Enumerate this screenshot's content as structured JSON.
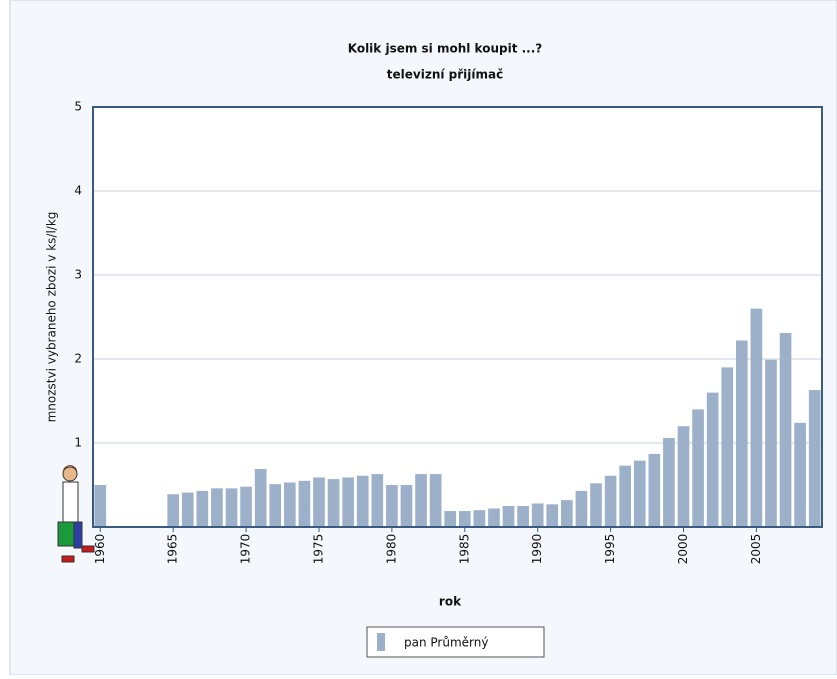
{
  "chart_data": {
    "type": "bar",
    "title": "Kolik jsem si  mohl koupit ...?",
    "subtitle": "televizní přijímač",
    "x_label": "rok",
    "y_label": "mnozstvi vybraneho zbozi v ks/l/kg",
    "categories": [
      "1960",
      null,
      null,
      null,
      null,
      "1965",
      null,
      null,
      null,
      null,
      "1970",
      null,
      null,
      null,
      null,
      "1975",
      null,
      null,
      null,
      null,
      "1980",
      null,
      null,
      null,
      null,
      "1985",
      null,
      null,
      null,
      null,
      "1990",
      null,
      null,
      null,
      null,
      "1995",
      null,
      null,
      null,
      null,
      "2000",
      null,
      null,
      null,
      null,
      "2005",
      null,
      null,
      null,
      null
    ],
    "series": [
      {
        "name": "pan Průměrný",
        "color": "#9cb1c9",
        "values": [
          0.5,
          null,
          null,
          null,
          null,
          0.39,
          0.41,
          0.43,
          0.46,
          0.46,
          0.48,
          0.69,
          0.51,
          0.53,
          0.55,
          0.59,
          0.57,
          0.59,
          0.61,
          0.63,
          0.5,
          0.5,
          0.63,
          0.63,
          0.19,
          0.19,
          0.2,
          0.22,
          0.25,
          0.25,
          0.28,
          0.27,
          0.32,
          0.43,
          0.52,
          0.61,
          0.73,
          0.79,
          0.87,
          1.06,
          1.2,
          1.4,
          1.6,
          1.9,
          2.22,
          2.6,
          1.99,
          2.31,
          1.24,
          1.63
        ]
      }
    ],
    "ylim": [
      0,
      5
    ],
    "yticks": [
      1,
      2,
      3,
      4,
      5
    ],
    "grid": true
  }
}
